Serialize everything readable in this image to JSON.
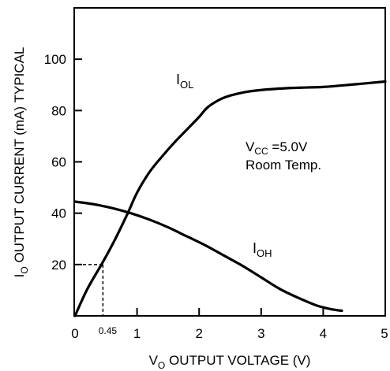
{
  "chart_data": {
    "type": "line",
    "xlabel": {
      "main": "V",
      "sub": "O",
      "rest": " OUTPUT VOLTAGE (V)"
    },
    "ylabel": {
      "main": "I",
      "sub": "O",
      "rest": " OUTPUT CURRENT (mA) TYPICAL"
    },
    "xlim": [
      0,
      5
    ],
    "ylim": [
      0,
      120
    ],
    "x_ticks": [
      {
        "value": 0,
        "label": "0"
      },
      {
        "value": 1,
        "label": "1"
      },
      {
        "value": 2,
        "label": "2"
      },
      {
        "value": 3,
        "label": "3"
      },
      {
        "value": 4,
        "label": "4"
      },
      {
        "value": 5,
        "label": "5"
      }
    ],
    "y_ticks": [
      {
        "value": 20,
        "label": "20"
      },
      {
        "value": 40,
        "label": "40"
      },
      {
        "value": 60,
        "label": "60"
      },
      {
        "value": 80,
        "label": "80"
      },
      {
        "value": 100,
        "label": "100"
      }
    ],
    "grid": false,
    "series": [
      {
        "name": {
          "main": "I",
          "sub": "OL"
        },
        "x": [
          0,
          0.2,
          0.45,
          0.65,
          0.85,
          1.0,
          1.2,
          1.4,
          1.6,
          1.8,
          2.0,
          2.15,
          2.4,
          2.7,
          3.0,
          3.5,
          4.0,
          4.5,
          5.0
        ],
        "y": [
          0,
          10.5,
          21,
          30,
          40,
          48,
          56,
          62,
          67.5,
          72.5,
          77.5,
          81.5,
          85,
          87,
          88,
          88.8,
          89.2,
          90.2,
          91.3
        ]
      },
      {
        "name": {
          "main": "I",
          "sub": "OH"
        },
        "x": [
          0,
          0.3,
          0.6,
          0.9,
          1.2,
          1.5,
          1.8,
          2.1,
          2.4,
          2.7,
          3.0,
          3.3,
          3.6,
          3.9,
          4.15,
          4.3
        ],
        "y": [
          44.5,
          43.5,
          42,
          40,
          37.5,
          34.5,
          31,
          27.5,
          23.5,
          19.5,
          15,
          10.5,
          7,
          4,
          2.5,
          2
        ]
      }
    ],
    "annotations": {
      "marker_label": "0.45",
      "marker_x": 0.45,
      "marker_y": 20,
      "condition": {
        "line1_main": "V",
        "line1_sub": "CC",
        "line1_rest": " =5.0V",
        "line2": "Room Temp."
      }
    }
  }
}
